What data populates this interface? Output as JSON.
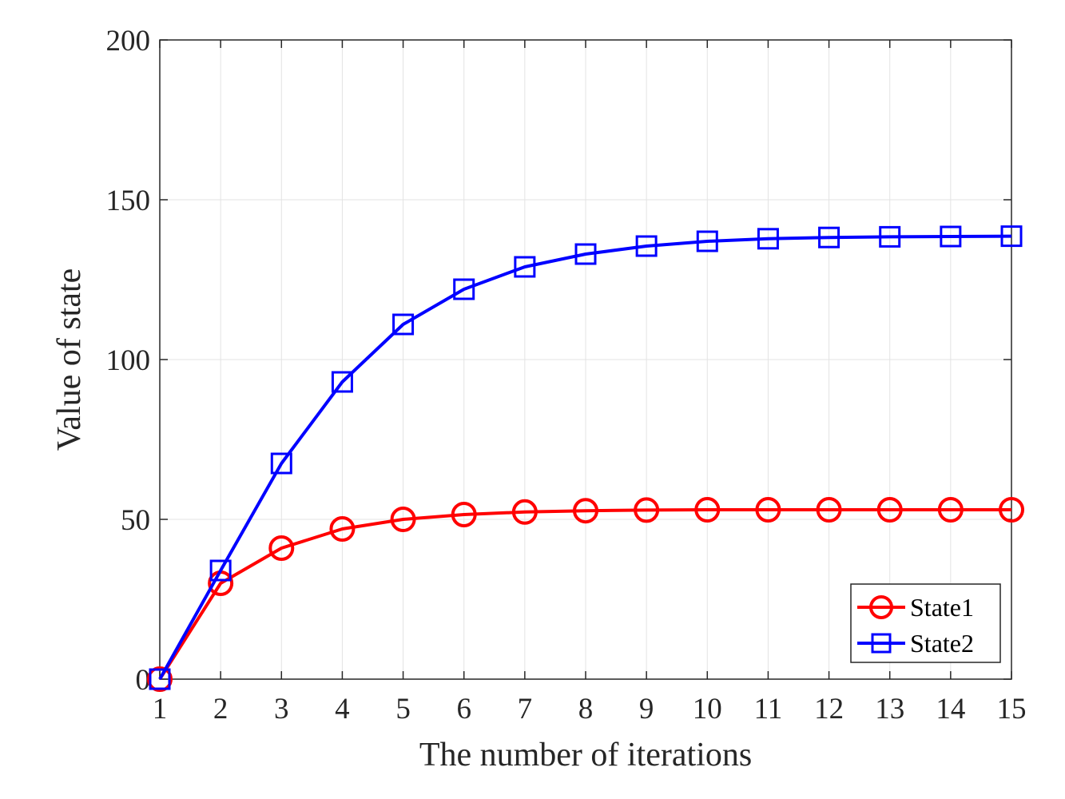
{
  "chart_data": {
    "type": "line",
    "title": "",
    "xlabel": "The number of iterations",
    "ylabel": "Value of state",
    "x": [
      1,
      2,
      3,
      4,
      5,
      6,
      7,
      8,
      9,
      10,
      11,
      12,
      13,
      14,
      15
    ],
    "xlim": [
      1,
      15
    ],
    "ylim": [
      0,
      200
    ],
    "xticks": [
      1,
      2,
      3,
      4,
      5,
      6,
      7,
      8,
      9,
      10,
      11,
      12,
      13,
      14,
      15
    ],
    "yticks": [
      0,
      50,
      100,
      150,
      200
    ],
    "grid": true,
    "legend_position": "bottom-right",
    "series": [
      {
        "name": "State1",
        "color": "#ff0000",
        "marker": "circle",
        "values": [
          0,
          30,
          41,
          47,
          50,
          51.5,
          52.3,
          52.7,
          52.9,
          53,
          53,
          53,
          53,
          53,
          53
        ]
      },
      {
        "name": "State2",
        "color": "#0000ff",
        "marker": "square",
        "values": [
          0,
          34,
          67.5,
          93,
          111,
          122,
          129,
          133,
          135.5,
          137,
          137.8,
          138.2,
          138.4,
          138.5,
          138.6
        ]
      }
    ]
  }
}
